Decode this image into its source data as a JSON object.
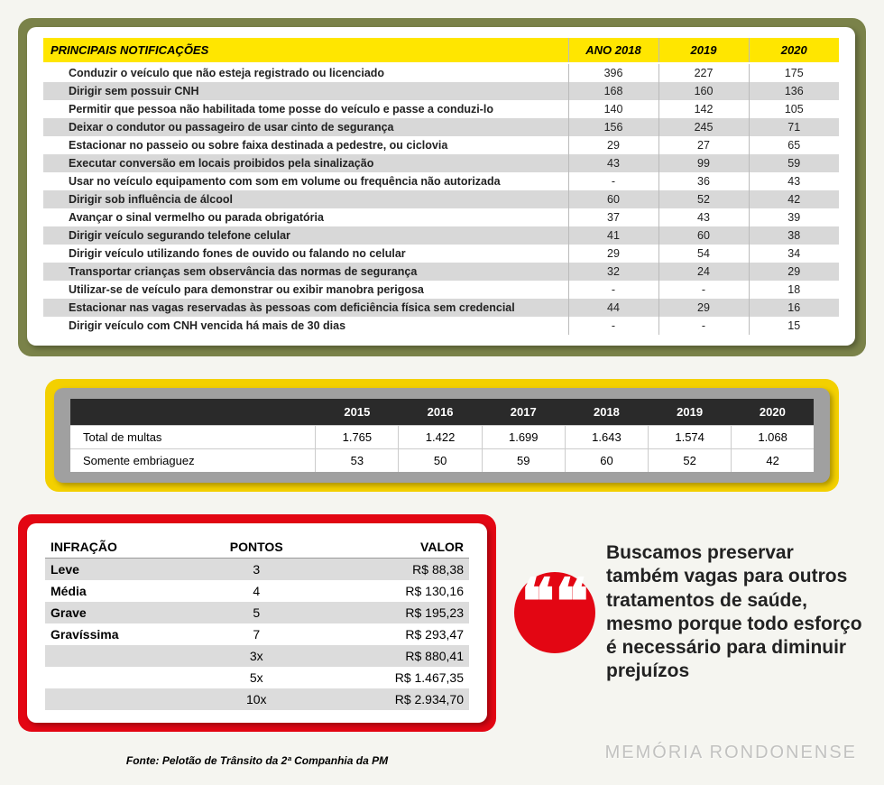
{
  "colors": {
    "green": "#7a8249",
    "yellow_header": "#ffe600",
    "yellow_card": "#f3d000",
    "red": "#e30613",
    "dark_header": "#2a2a2a",
    "stripe": "#d8d8d8"
  },
  "table1": {
    "header": {
      "c0": "PRINCIPAIS NOTIFICAÇÕES",
      "c1": "ANO 2018",
      "c2": "2019",
      "c3": "2020"
    },
    "rows": [
      {
        "label": "Conduzir o veículo que não esteja registrado ou licenciado",
        "y18": "396",
        "y19": "227",
        "y20": "175"
      },
      {
        "label": "Dirigir sem possuir CNH",
        "y18": "168",
        "y19": "160",
        "y20": "136"
      },
      {
        "label": "Permitir que pessoa não habilitada tome posse do veículo e passe a conduzi-lo",
        "y18": "140",
        "y19": "142",
        "y20": "105"
      },
      {
        "label": "Deixar o condutor ou passageiro de usar cinto de segurança",
        "y18": "156",
        "y19": "245",
        "y20": "71"
      },
      {
        "label": "Estacionar no passeio ou sobre faixa destinada a pedestre, ou ciclovia",
        "y18": "29",
        "y19": "27",
        "y20": "65"
      },
      {
        "label": "Executar conversão em locais proibidos pela sinalização",
        "y18": "43",
        "y19": "99",
        "y20": "59"
      },
      {
        "label": "Usar no veículo equipamento com som em volume ou frequência não autorizada",
        "y18": "-",
        "y19": "36",
        "y20": "43"
      },
      {
        "label": "Dirigir sob influência de álcool",
        "y18": "60",
        "y19": "52",
        "y20": "42"
      },
      {
        "label": "Avançar o sinal vermelho ou parada obrigatória",
        "y18": "37",
        "y19": "43",
        "y20": "39"
      },
      {
        "label": "Dirigir veículo segurando telefone celular",
        "y18": "41",
        "y19": "60",
        "y20": "38"
      },
      {
        "label": "Dirigir veículo utilizando fones de ouvido ou falando no celular",
        "y18": "29",
        "y19": "54",
        "y20": "34"
      },
      {
        "label": "Transportar crianças sem observância das normas de segurança",
        "y18": "32",
        "y19": "24",
        "y20": "29"
      },
      {
        "label": "Utilizar-se de veículo para demonstrar ou exibir manobra perigosa",
        "y18": "-",
        "y19": "-",
        "y20": "18"
      },
      {
        "label": "Estacionar nas vagas reservadas às pessoas com deficiência física sem credencial",
        "y18": "44",
        "y19": "29",
        "y20": "16"
      },
      {
        "label": "Dirigir veículo com CNH vencida há mais de 30 dias",
        "y18": "-",
        "y19": "-",
        "y20": "15"
      }
    ]
  },
  "table2": {
    "header": {
      "blank": "",
      "y15": "2015",
      "y16": "2016",
      "y17": "2017",
      "y18": "2018",
      "y19": "2019",
      "y20": "2020"
    },
    "rows": [
      {
        "label": "Total de multas",
        "y15": "1.765",
        "y16": "1.422",
        "y17": "1.699",
        "y18": "1.643",
        "y19": "1.574",
        "y20": "1.068"
      },
      {
        "label": "Somente embriaguez",
        "y15": "53",
        "y16": "50",
        "y17": "59",
        "y18": "60",
        "y19": "52",
        "y20": "42"
      }
    ]
  },
  "table3": {
    "header": {
      "c0": "INFRAÇÃO",
      "c1": "PONTOS",
      "c2": "VALOR"
    },
    "rows": [
      {
        "label": "Leve",
        "pts": "3",
        "val": "R$ 88,38"
      },
      {
        "label": "Média",
        "pts": "4",
        "val": "R$ 130,16"
      },
      {
        "label": "Grave",
        "pts": "5",
        "val": "R$ 195,23"
      },
      {
        "label": "Gravíssima",
        "pts": "7",
        "val": "R$ 293,47"
      },
      {
        "label": "",
        "pts": "3x",
        "val": "R$ 880,41"
      },
      {
        "label": "",
        "pts": "5x",
        "val": "R$ 1.467,35"
      },
      {
        "label": "",
        "pts": "10x",
        "val": "R$ 2.934,70"
      }
    ]
  },
  "source": "Fonte: Pelotão de Trânsito da 2ª Companhia da PM",
  "quote": {
    "mark": "❝",
    "text": "Buscamos preservar também vagas para outros tratamentos de saúde, mesmo porque todo esforço é necessário para diminuir prejuízos"
  },
  "watermark": "MEMÓRIA RONDONENSE"
}
